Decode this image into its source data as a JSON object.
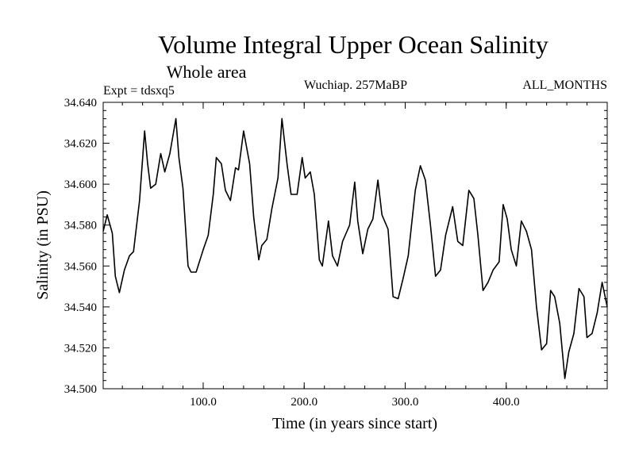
{
  "chart_data": {
    "type": "line",
    "title": "Volume Integral Upper Ocean Salinity",
    "subtitle": "Whole area",
    "experiment_label": "Expt = tdsxq5",
    "period_label": "Wuchiap. 257MaBP",
    "months_label": "ALL_MONTHS",
    "xlabel": "Time (in years since start)",
    "ylabel": "Salinity (in PSU)",
    "xlim": [
      1,
      500
    ],
    "ylim": [
      34.5,
      34.64
    ],
    "x_ticks": [
      100,
      200,
      300,
      400
    ],
    "x_tick_labels": [
      "100.0",
      "200.0",
      "300.0",
      "400.0"
    ],
    "y_ticks": [
      34.5,
      34.52,
      34.54,
      34.56,
      34.58,
      34.6,
      34.62,
      34.64
    ],
    "y_tick_labels": [
      "34.500",
      "34.520",
      "34.540",
      "34.560",
      "34.580",
      "34.600",
      "34.620",
      "34.640"
    ],
    "grid": false,
    "series": [
      {
        "name": "Salinity",
        "x": [
          1,
          5,
          10,
          13,
          17,
          22,
          27,
          31,
          37,
          42,
          45,
          48,
          53,
          58,
          62,
          67,
          73,
          76,
          80,
          85,
          88,
          93,
          100,
          105,
          110,
          113,
          118,
          122,
          127,
          132,
          135,
          140,
          146,
          150,
          155,
          158,
          163,
          168,
          174,
          178,
          183,
          187,
          193,
          198,
          201,
          206,
          210,
          215,
          218,
          224,
          228,
          233,
          238,
          245,
          250,
          253,
          258,
          263,
          268,
          273,
          277,
          283,
          288,
          293,
          298,
          303,
          310,
          315,
          320,
          325,
          330,
          335,
          340,
          347,
          352,
          357,
          363,
          368,
          372,
          377,
          382,
          387,
          393,
          397,
          401,
          405,
          410,
          415,
          420,
          425,
          430,
          435,
          440,
          444,
          448,
          453,
          458,
          462,
          467,
          472,
          477,
          480,
          485,
          490,
          495,
          500
        ],
        "values": [
          34.577,
          34.585,
          34.576,
          34.555,
          34.547,
          34.558,
          34.565,
          34.567,
          34.592,
          34.626,
          34.61,
          34.598,
          34.6,
          34.615,
          34.606,
          34.615,
          34.632,
          34.613,
          34.598,
          34.56,
          34.557,
          34.557,
          34.568,
          34.575,
          34.595,
          34.613,
          34.61,
          34.597,
          34.592,
          34.608,
          34.607,
          34.626,
          34.61,
          34.584,
          34.563,
          34.57,
          34.573,
          34.588,
          34.603,
          34.632,
          34.61,
          34.595,
          34.595,
          34.613,
          34.603,
          34.606,
          34.595,
          34.563,
          34.56,
          34.582,
          34.565,
          34.56,
          34.572,
          34.58,
          34.601,
          34.582,
          34.566,
          34.578,
          34.583,
          34.602,
          34.585,
          34.578,
          34.545,
          34.544,
          34.554,
          34.565,
          34.597,
          34.609,
          34.602,
          34.58,
          34.555,
          34.558,
          34.575,
          34.589,
          34.572,
          34.57,
          34.597,
          34.593,
          34.575,
          34.548,
          34.552,
          34.558,
          34.562,
          34.59,
          34.583,
          34.568,
          34.56,
          34.582,
          34.577,
          34.568,
          34.54,
          34.519,
          34.522,
          34.548,
          34.545,
          34.532,
          34.505,
          34.518,
          34.527,
          34.549,
          34.545,
          34.525,
          34.527,
          34.537,
          34.552,
          34.54
        ]
      }
    ]
  }
}
